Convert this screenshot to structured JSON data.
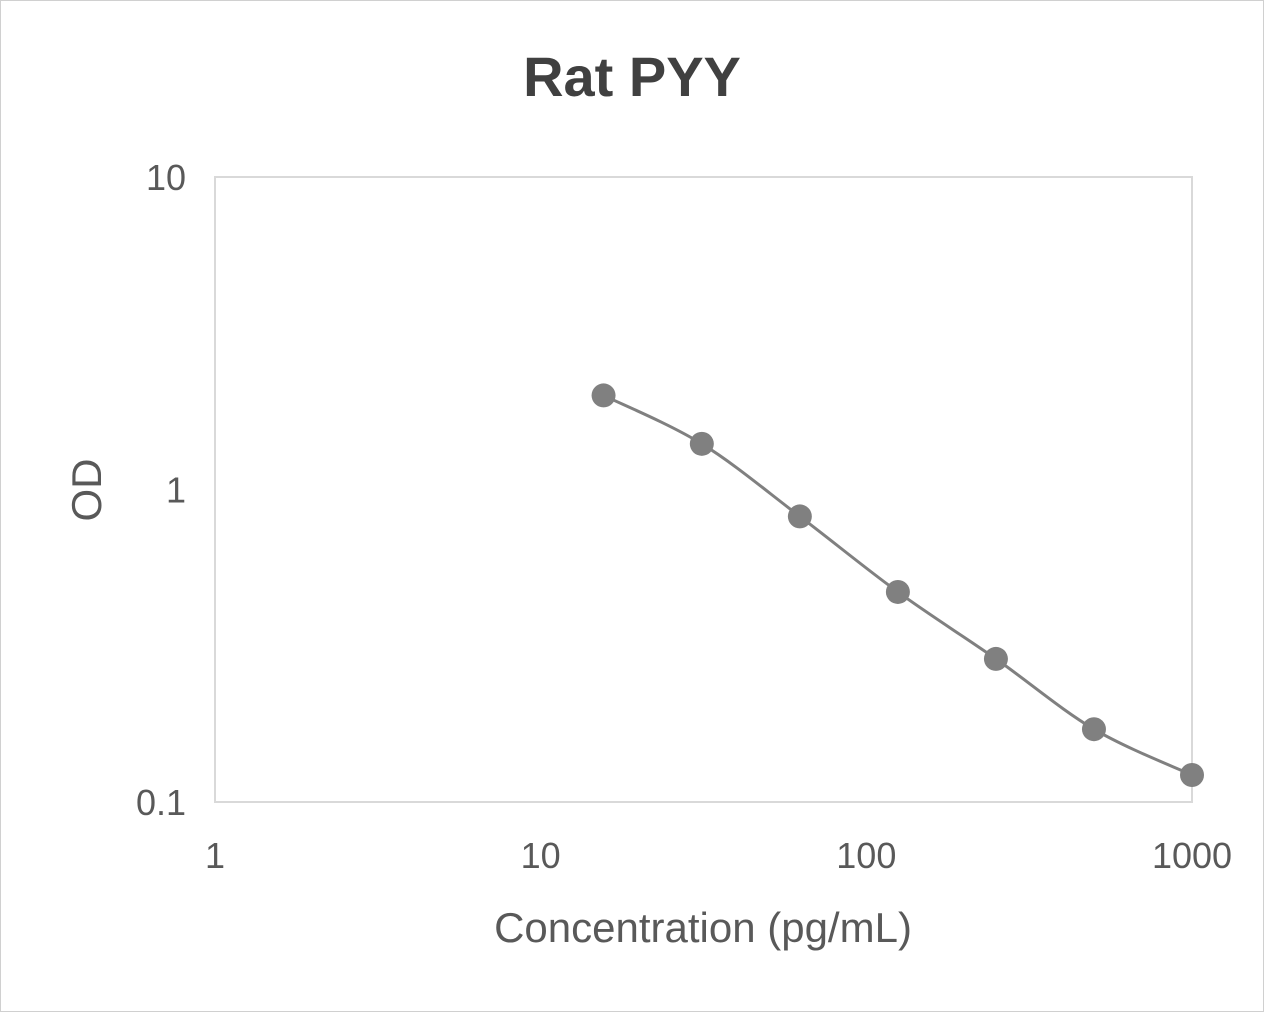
{
  "chart_data": {
    "type": "line",
    "title": "Rat PYY",
    "xlabel": "Concentration (pg/mL)",
    "ylabel": "OD",
    "xscale": "log",
    "yscale": "log",
    "xlim": [
      1,
      1000
    ],
    "ylim": [
      0.1,
      10
    ],
    "xticks": [
      "1",
      "10",
      "100",
      "1000"
    ],
    "yticks": [
      "0.1",
      "1",
      "10"
    ],
    "grid": false,
    "legend": "none",
    "smooth": true,
    "series": [
      {
        "x": [
          15.6,
          31.25,
          62.5,
          125,
          250,
          500,
          1000
        ],
        "y": [
          2.0,
          1.4,
          0.82,
          0.47,
          0.287,
          0.171,
          0.122
        ],
        "color": "#808080"
      }
    ]
  }
}
